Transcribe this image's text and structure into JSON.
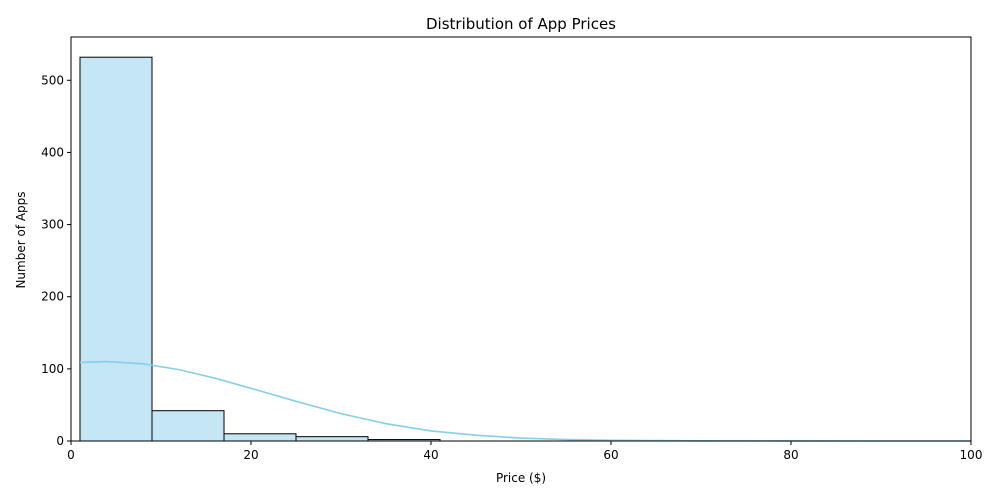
{
  "chart_data": {
    "type": "histogram",
    "title": "Distribution of App Prices",
    "xlabel": "Price ($)",
    "ylabel": "Number of Apps",
    "xlim": [
      0,
      100
    ],
    "ylim": [
      0,
      560
    ],
    "x_ticks": [
      0,
      20,
      40,
      60,
      80,
      100
    ],
    "y_ticks": [
      0,
      100,
      200,
      300,
      400,
      500
    ],
    "bins": [
      {
        "start": 1.0,
        "end": 9.0,
        "count": 532
      },
      {
        "start": 9.0,
        "end": 17.0,
        "count": 42
      },
      {
        "start": 17.0,
        "end": 25.0,
        "count": 10
      },
      {
        "start": 25.0,
        "end": 33.0,
        "count": 6
      },
      {
        "start": 33.0,
        "end": 41.0,
        "count": 2
      }
    ],
    "kde": {
      "x": [
        1,
        4,
        8,
        12,
        16,
        20,
        25,
        30,
        35,
        40,
        45,
        50,
        55,
        60,
        70,
        80,
        90,
        100
      ],
      "y": [
        109,
        110,
        107,
        99,
        87,
        73,
        55,
        38,
        24,
        14,
        8,
        4,
        2,
        1,
        0.3,
        0.1,
        0,
        0
      ]
    },
    "grid": false,
    "colors": {
      "bar_fill": "#c5e6f5",
      "bar_edge": "#000000",
      "kde_line": "#87ceeb",
      "axes": "#000000"
    }
  }
}
